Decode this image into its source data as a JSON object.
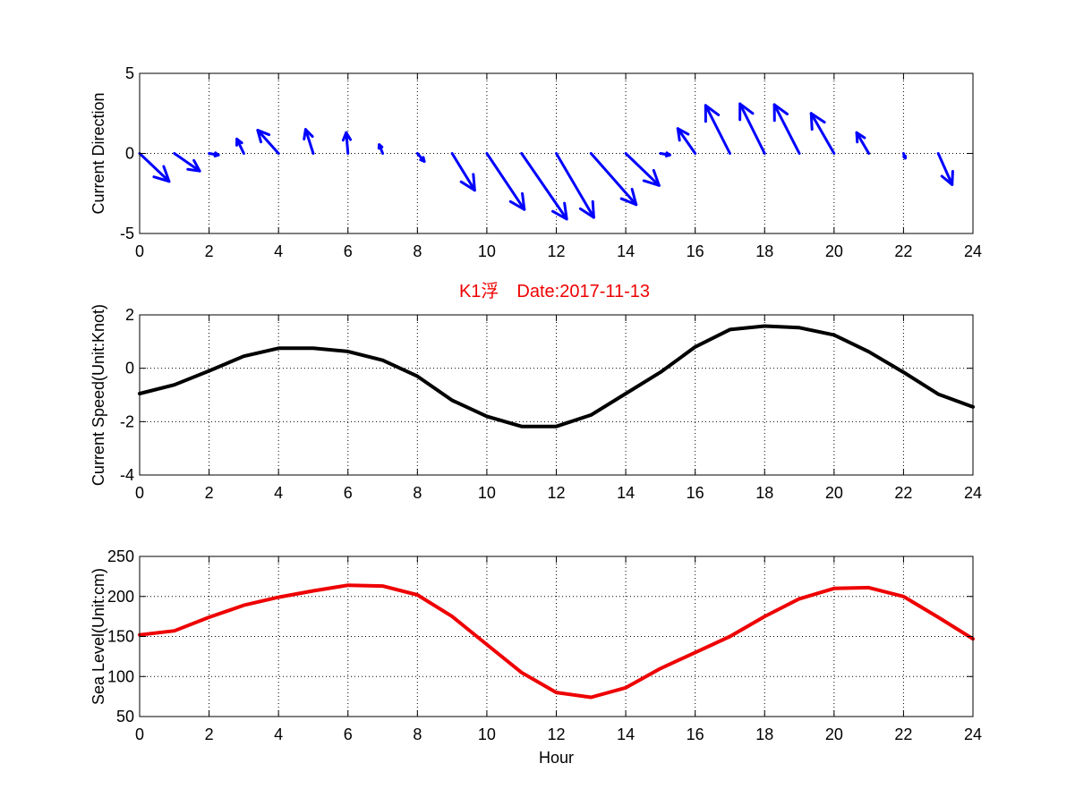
{
  "chart_data": [
    {
      "type": "quiver",
      "ylabel": "Current Direction",
      "xlim": [
        0,
        24
      ],
      "ylim": [
        -5,
        5
      ],
      "xticks": [
        0,
        2,
        4,
        6,
        8,
        10,
        12,
        14,
        16,
        18,
        20,
        22,
        24
      ],
      "yticks": [
        -5,
        0,
        5
      ],
      "grid": true,
      "color": "#0000ff",
      "x": [
        0,
        1,
        2,
        3,
        4,
        5,
        6,
        7,
        8,
        9,
        10,
        11,
        12,
        13,
        14,
        15,
        16,
        17,
        18,
        19,
        20,
        21,
        22,
        23
      ],
      "u": [
        0.85,
        0.73,
        0.27,
        -0.2,
        -0.6,
        -0.22,
        -0.05,
        -0.1,
        0.2,
        0.65,
        1.08,
        1.3,
        1.08,
        1.3,
        0.96,
        0.27,
        -0.5,
        -0.7,
        -0.71,
        -0.72,
        -0.66,
        -0.35,
        0.05,
        0.4
      ],
      "v": [
        -1.75,
        -1.1,
        -0.1,
        0.9,
        1.45,
        1.5,
        1.3,
        0.55,
        -0.5,
        -2.3,
        -3.5,
        -4.1,
        -4.0,
        -3.2,
        -2.0,
        -0.1,
        1.55,
        3.0,
        3.1,
        3.05,
        2.5,
        1.3,
        -0.3,
        -1.95
      ]
    },
    {
      "type": "line",
      "title": "K1浮　Date:2017-11-13",
      "ylabel": "Current Speed(Unit:Knot)",
      "xlim": [
        0,
        24
      ],
      "ylim": [
        -4,
        2
      ],
      "xticks": [
        0,
        2,
        4,
        6,
        8,
        10,
        12,
        14,
        16,
        18,
        20,
        22,
        24
      ],
      "yticks": [
        -4,
        -2,
        0,
        2
      ],
      "grid": true,
      "color": "#000000",
      "x": [
        0,
        1,
        2,
        3,
        4,
        5,
        6,
        7,
        8,
        9,
        10,
        11,
        12,
        13,
        14,
        15,
        16,
        17,
        18,
        19,
        20,
        21,
        22,
        23,
        24
      ],
      "y": [
        -0.95,
        -0.62,
        -0.1,
        0.45,
        0.75,
        0.75,
        0.63,
        0.3,
        -0.3,
        -1.2,
        -1.8,
        -2.18,
        -2.18,
        -1.75,
        -0.95,
        -0.15,
        0.8,
        1.45,
        1.58,
        1.52,
        1.25,
        0.62,
        -0.15,
        -0.97,
        -1.45
      ]
    },
    {
      "type": "line",
      "ylabel": "Sea Level(Unit:cm)",
      "xlabel": "Hour",
      "xlim": [
        0,
        24
      ],
      "ylim": [
        50,
        250
      ],
      "xticks": [
        0,
        2,
        4,
        6,
        8,
        10,
        12,
        14,
        16,
        18,
        20,
        22,
        24
      ],
      "yticks": [
        50,
        100,
        150,
        200,
        250
      ],
      "grid": true,
      "color": "#ee0000",
      "x": [
        0,
        1,
        2,
        3,
        4,
        5,
        6,
        7,
        8,
        9,
        10,
        11,
        12,
        13,
        14,
        15,
        16,
        17,
        18,
        19,
        20,
        21,
        22,
        23,
        24
      ],
      "y": [
        152,
        157,
        174,
        189,
        199,
        207,
        214,
        213,
        202,
        175,
        140,
        105,
        80,
        74,
        86,
        110,
        130,
        150,
        175,
        197,
        210,
        211,
        200,
        174,
        147
      ]
    }
  ]
}
